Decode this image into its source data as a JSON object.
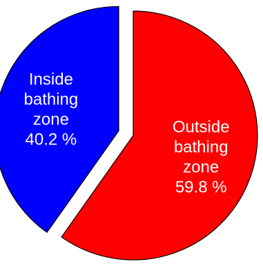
{
  "chart_data": {
    "type": "pie",
    "slices": [
      {
        "label_lines": [
          "Outside",
          "bathing",
          "zone"
        ],
        "value_text": "59.8 %",
        "value": 59.8,
        "color": "#ff0000",
        "exploded": false
      },
      {
        "label_lines": [
          "Inside",
          "bathing",
          "zone"
        ],
        "value_text": "40.2 %",
        "value": 40.2,
        "color": "#0000ff",
        "exploded": true
      }
    ],
    "legend": "none",
    "start": "12 o'clock",
    "direction": "clockwise",
    "outline_color": "#000000"
  }
}
